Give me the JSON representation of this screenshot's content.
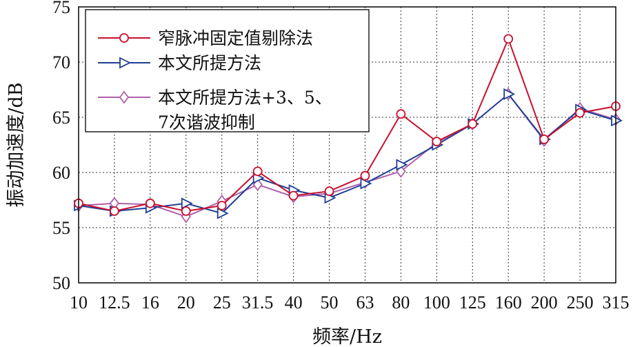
{
  "chart_data": {
    "type": "line",
    "xlabel": "频率/Hz",
    "ylabel": "振动加速度/dB",
    "ylim": [
      50,
      75
    ],
    "yticks": [
      50,
      55,
      60,
      65,
      70,
      75
    ],
    "categories": [
      "10",
      "12.5",
      "16",
      "20",
      "25",
      "31.5",
      "40",
      "50",
      "63",
      "80",
      "100",
      "125",
      "160",
      "200",
      "250",
      "315"
    ],
    "grid": true,
    "legend_position": "top-left",
    "series": [
      {
        "name": "窄脉冲固定值剔除法",
        "color": "#c8102e",
        "marker": "circle",
        "values": [
          57.2,
          56.5,
          57.2,
          56.5,
          57.0,
          60.1,
          57.9,
          58.3,
          59.7,
          65.3,
          62.8,
          64.4,
          72.1,
          63.0,
          65.4,
          66.0
        ]
      },
      {
        "name": "本文所提方法",
        "color": "#1f3f94",
        "marker": "triangle-right",
        "values": [
          57.0,
          56.5,
          56.8,
          57.2,
          56.3,
          59.5,
          58.4,
          57.7,
          59.0,
          60.7,
          62.5,
          64.4,
          67.1,
          63.0,
          65.7,
          64.7
        ]
      },
      {
        "name": "本文所提方法+3、5、7次谐波抑制",
        "legend_lines": [
          "本文所提方法+3、5、",
          "7次谐波抑制"
        ],
        "color": "#b05fa8",
        "marker": "diamond",
        "values": [
          57.0,
          57.2,
          57.1,
          56.0,
          57.4,
          58.9,
          57.8,
          58.1,
          59.1,
          60.1,
          62.7,
          64.4,
          67.1,
          62.9,
          65.8,
          64.8
        ]
      }
    ]
  }
}
